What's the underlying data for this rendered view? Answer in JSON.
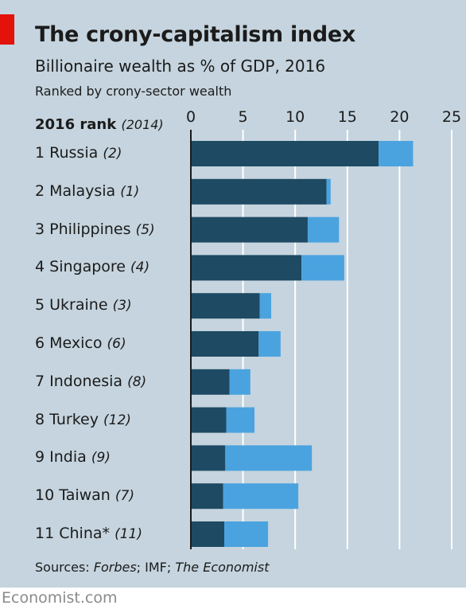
{
  "header": {
    "title": "The crony-capitalism index",
    "subtitle": "Billionaire wealth as % of GDP, 2016",
    "note": "Ranked by crony-sector wealth",
    "rank_head_main": "2016 rank",
    "rank_head_sub": "(2014)"
  },
  "footer": {
    "sources_prefix": "Sources: ",
    "sources_forbes": "Forbes",
    "sources_mid": "; IMF; ",
    "sources_economist": "The Economist",
    "brand": "Economist.com"
  },
  "colors": {
    "panel": "#c5d4de",
    "crony": "#1e4a63",
    "other": "#4aa3df",
    "red_mark": "#e3120b",
    "grid": "#ffffff"
  },
  "chart_data": {
    "type": "bar",
    "orientation": "horizontal",
    "stacked": true,
    "title": "The crony-capitalism index",
    "subtitle": "Billionaire wealth as % of GDP, 2016",
    "xlim": [
      0,
      25
    ],
    "xticks": [
      "0",
      "5",
      "10",
      "15",
      "20",
      "25"
    ],
    "grid": true,
    "categories": [
      "Russia",
      "Malaysia",
      "Philippines",
      "Singapore",
      "Ukraine",
      "Mexico",
      "Indonesia",
      "Turkey",
      "India",
      "Taiwan",
      "China*"
    ],
    "rows": [
      {
        "rank": "1",
        "country": "Russia",
        "prev": "(2)"
      },
      {
        "rank": "2",
        "country": "Malaysia",
        "prev": "(1)"
      },
      {
        "rank": "3",
        "country": "Philippines",
        "prev": "(5)"
      },
      {
        "rank": "4",
        "country": "Singapore",
        "prev": "(4)"
      },
      {
        "rank": "5",
        "country": "Ukraine",
        "prev": "(3)"
      },
      {
        "rank": "6",
        "country": "Mexico",
        "prev": "(6)"
      },
      {
        "rank": "7",
        "country": "Indonesia",
        "prev": "(8)"
      },
      {
        "rank": "8",
        "country": "Turkey",
        "prev": "(12)"
      },
      {
        "rank": "9",
        "country": "India",
        "prev": "(9)"
      },
      {
        "rank": "10",
        "country": "Taiwan",
        "prev": "(7)"
      },
      {
        "rank": "11",
        "country": "China*",
        "prev": "(11)"
      }
    ],
    "series": [
      {
        "values": [
          18.0,
          13.0,
          11.2,
          10.6,
          6.6,
          6.5,
          3.7,
          3.4,
          3.3,
          3.1,
          3.2
        ]
      },
      {
        "values": [
          3.3,
          0.4,
          3.0,
          4.1,
          1.1,
          2.1,
          2.0,
          2.7,
          8.3,
          7.2,
          4.2
        ]
      }
    ]
  }
}
